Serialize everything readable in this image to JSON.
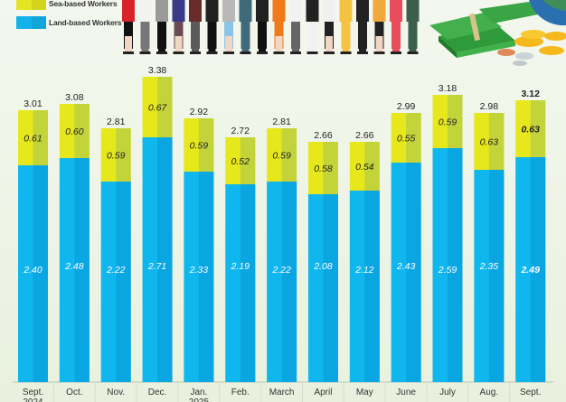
{
  "legend": [
    {
      "label": "Sea-based Workers",
      "color": "#e3e620"
    },
    {
      "label": "Land-based Workers",
      "color": "#14b2ea"
    }
  ],
  "colors": {
    "sea": "#e6e81c",
    "sea_shade": "#c3d43a",
    "land": "#10b7ee",
    "land_shade": "#0aa6e2",
    "axis": "#b9c2b0",
    "separator": "#d6ddce"
  },
  "illustration": {
    "description": "row of workers in various uniforms, stacks of cash, coins and a globe",
    "icons": [
      "workers-illustration-icon",
      "cash-stack-icon",
      "coins-icon",
      "globe-icon"
    ]
  },
  "chart_data": {
    "type": "bar",
    "stacked": true,
    "title": "",
    "xlabel": "",
    "ylabel": "",
    "ylim": [
      0,
      3.5
    ],
    "grid": false,
    "legend_position": "top-left",
    "categories": [
      [
        "Sept.",
        "2024"
      ],
      [
        "Oct."
      ],
      [
        "Nov."
      ],
      [
        "Dec."
      ],
      [
        "Jan.",
        "2025"
      ],
      [
        "Feb."
      ],
      [
        "March"
      ],
      [
        "April"
      ],
      [
        "May"
      ],
      [
        "June"
      ],
      [
        "July"
      ],
      [
        "Aug."
      ],
      [
        "Sept."
      ]
    ],
    "series": [
      {
        "name": "Land-based Workers",
        "values": [
          2.4,
          2.48,
          2.22,
          2.71,
          2.33,
          2.19,
          2.22,
          2.08,
          2.12,
          2.43,
          2.59,
          2.35,
          2.49
        ]
      },
      {
        "name": "Sea-based Workers",
        "values": [
          0.61,
          0.6,
          0.59,
          0.67,
          0.59,
          0.52,
          0.59,
          0.58,
          0.54,
          0.55,
          0.59,
          0.63,
          0.63
        ]
      }
    ],
    "totals": [
      3.01,
      3.08,
      2.81,
      3.38,
      2.92,
      2.72,
      2.81,
      2.66,
      2.66,
      2.99,
      3.18,
      2.98,
      3.12
    ],
    "highlighted_index": 12
  }
}
